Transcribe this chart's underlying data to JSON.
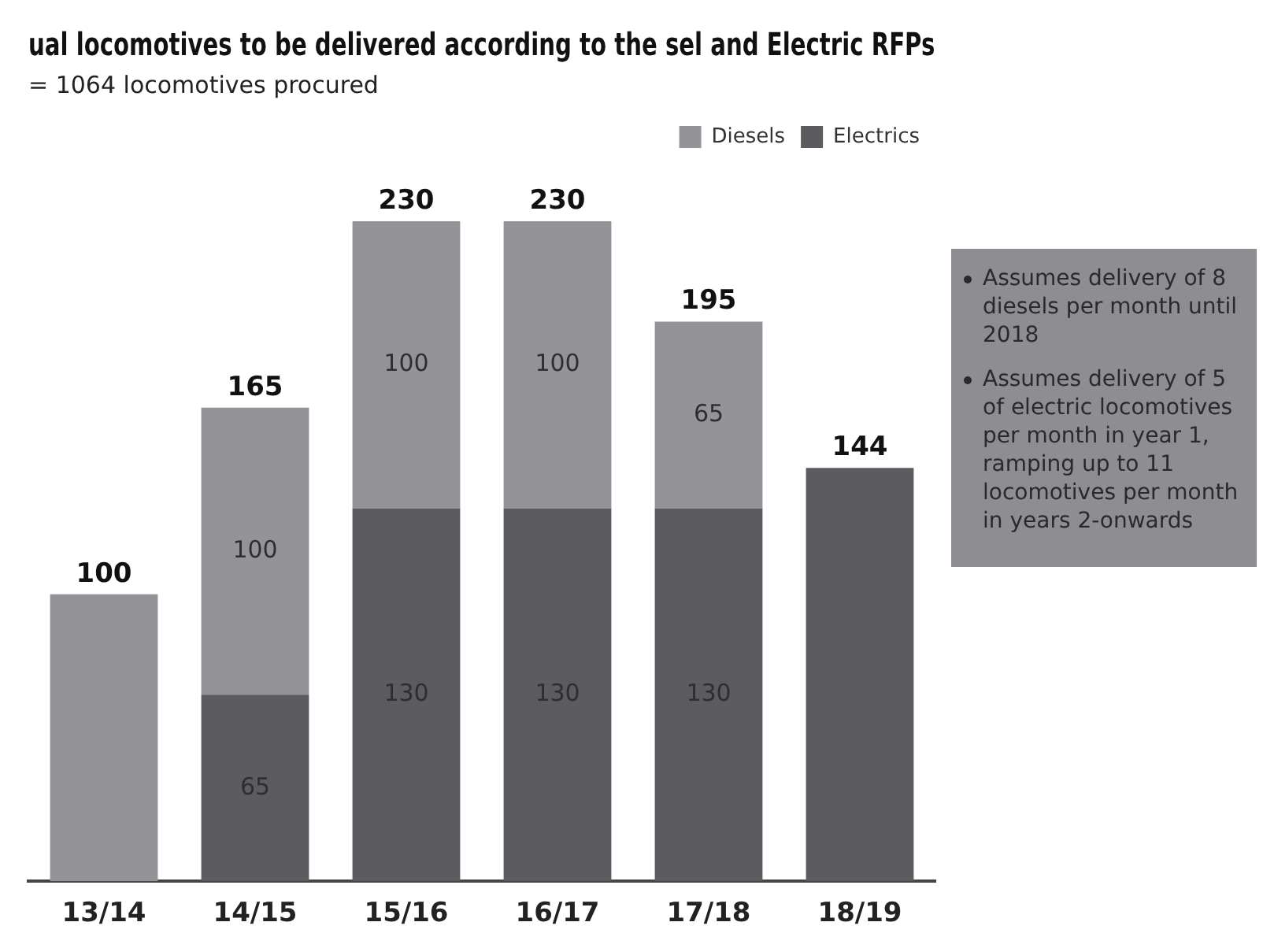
{
  "chart_data": {
    "type": "bar",
    "title": "ual locomotives to be delivered according to the sel and Electric RFPs",
    "subtitle": "= 1064 locomotives procured",
    "categories": [
      "13/14",
      "14/15",
      "15/16",
      "16/17",
      "17/18",
      "18/19"
    ],
    "stacked": true,
    "series": [
      {
        "name": "Electrics",
        "color": "#5c5c60",
        "values": [
          null,
          65,
          130,
          130,
          130,
          144
        ],
        "value_labels": [
          null,
          "65",
          "130",
          "130",
          "130",
          null
        ]
      },
      {
        "name": "Diesels",
        "color": "#949498",
        "values": [
          100,
          100,
          100,
          100,
          65,
          null
        ],
        "value_labels": [
          null,
          "100",
          "100",
          "100",
          "65",
          null
        ]
      }
    ],
    "totals": [
      "100",
      "165",
      "230",
      "230",
      "195",
      "144"
    ],
    "legend": "top right",
    "annotations": [
      "Assumes delivery of 8 diesels per month until 2018",
      "Assumes delivery of 5 of electric locomotives per month in year 1, ramping up to 11 locomotives per month in years 2-onwards"
    ]
  }
}
